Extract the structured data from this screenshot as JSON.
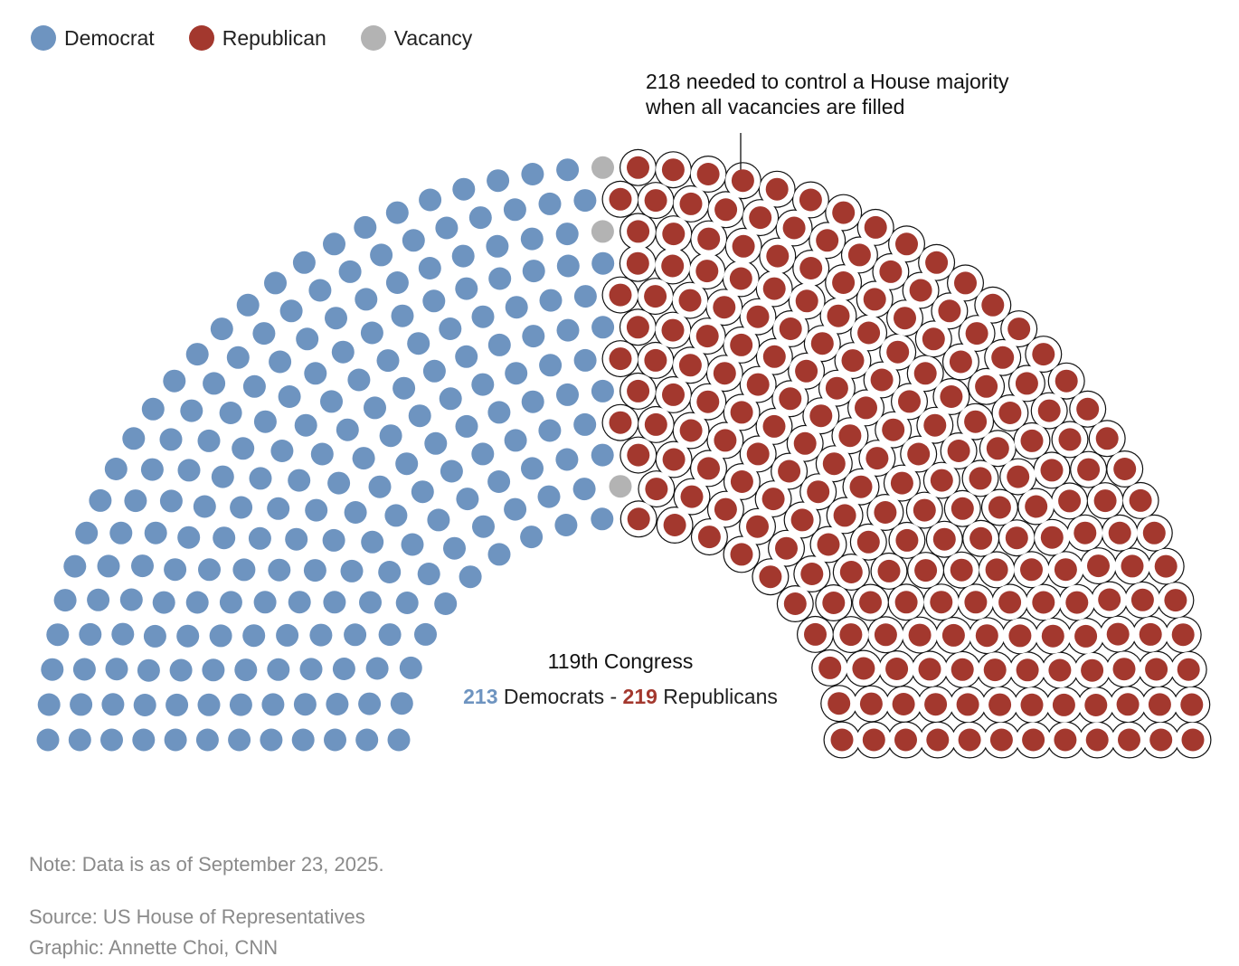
{
  "legend": [
    {
      "label": "Democrat",
      "color": "#6e94c0"
    },
    {
      "label": "Republican",
      "color": "#a3382e"
    },
    {
      "label": "Vacancy",
      "color": "#b3b3b3"
    }
  ],
  "annotation": {
    "line1": "218 needed to control a House majority",
    "line2": "when all vacancies are filled"
  },
  "center": {
    "title": "119th Congress",
    "dem_count": "213",
    "dem_text": " Democrats - ",
    "rep_count": "219",
    "rep_text": " Republicans"
  },
  "footer": {
    "note": "Note: Data is as of September 23, 2025.",
    "source": "Source: US House of Representatives",
    "credit": "Graphic: Annette Choi, CNN"
  },
  "chart_data": {
    "type": "parliament",
    "total_seats": 435,
    "majority_threshold": 218,
    "series": [
      {
        "name": "Democrat",
        "value": 213,
        "color": "#6e94c0"
      },
      {
        "name": "Vacancy",
        "value": 3,
        "color": "#b3b3b3"
      },
      {
        "name": "Republican",
        "value": 219,
        "color": "#a3382e"
      }
    ]
  }
}
